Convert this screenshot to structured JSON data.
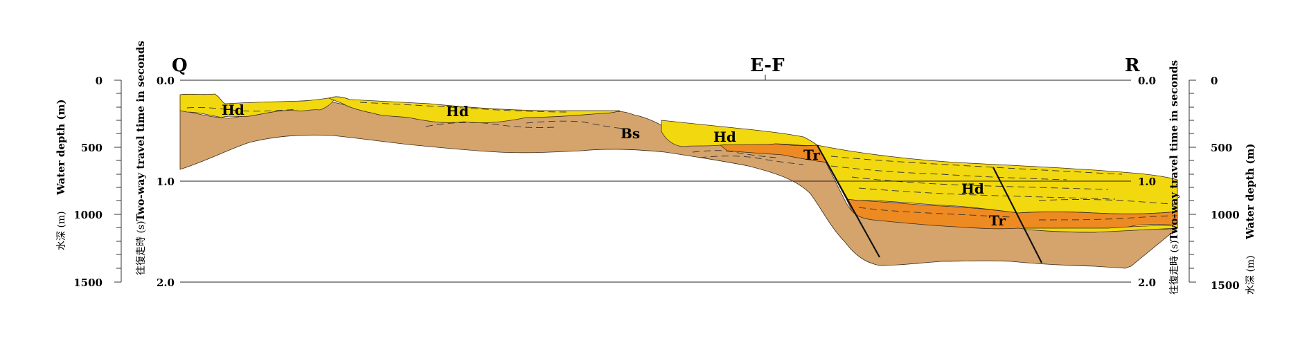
{
  "profile": {
    "left_label": "Q",
    "center_label": "E-F",
    "right_label": "R"
  },
  "left_axes": {
    "depth_ticks": [
      "0",
      "500",
      "1000",
      "1500"
    ],
    "time_ticks": [
      "0.0",
      "1.0",
      "2.0"
    ],
    "depth_title_en": "Water depth (m)",
    "depth_title_jp": "水深 (m)",
    "time_title_en": "Two-way travel time in seconds",
    "time_title_jp": "往復走時 (s)"
  },
  "right_axes": {
    "time_ticks": [
      "0.0",
      "1.0",
      "2.0"
    ],
    "depth_ticks": [
      "0",
      "500",
      "1000",
      "1500"
    ],
    "time_title_en": "Two-way travel time in seconds",
    "time_title_jp": "往復走時 (s)",
    "depth_title_en": "Water depth (m)",
    "depth_title_jp": "水深 (m)"
  },
  "units": {
    "hd_1": "Hd",
    "hd_2": "Hd",
    "hd_3": "Hd",
    "hd_4": "Hd",
    "bs": "Bs",
    "tr_1": "Tr",
    "tr_2": "Tr"
  },
  "colors": {
    "hd": "#f2d80e",
    "tr": "#ee8a22",
    "bs": "#d4a46c"
  }
}
